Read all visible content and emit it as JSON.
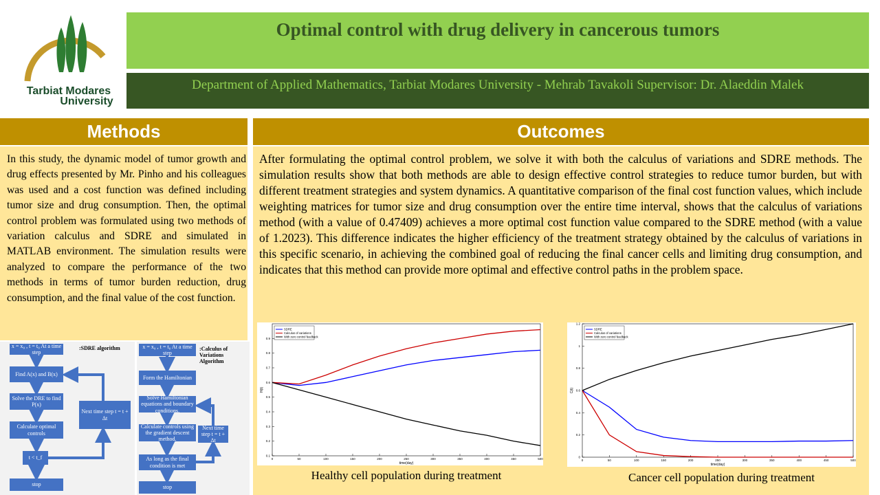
{
  "header": {
    "logo": [
      "Tarbiat Modares",
      "University"
    ],
    "title": "Optimal control with drug delivery in cancerous tumors",
    "subtitle": "Department of Applied Mathematics, Tarbiat Modares University - Mehrab Tavakoli Supervisor: Dr. Alaeddin Malek"
  },
  "methods": {
    "heading": "Methods",
    "text": "In this study, the dynamic model of tumor growth and drug effects presented by Mr. Pinho and his colleagues was used and a cost function was defined including tumor size and drug consumption. Then, the optimal control problem was formulated using two methods of variation calculus and SDRE and simulated in MATLAB environment. The simulation results were analyzed to compare the performance of the two methods in terms of tumor burden reduction, drug consumption, and the final value of the cost function."
  },
  "outcomes": {
    "heading": "Outcomes",
    "text": "After formulating the optimal control problem, we solve it with both the calculus of variations and SDRE methods. The simulation results show that both methods are able to design effective control strategies to reduce tumor burden, but with different treatment strategies and system dynamics. A quantitative comparison of the final cost function values, which include weighting matrices for tumor size and drug consumption over the entire time interval, shows that the calculus of variations method (with a value of 0.47409) achieves a more optimal cost function value compared to the SDRE method (with a value of 1.2023). This difference indicates the higher efficiency of the treatment strategy obtained by the calculus of variations in this specific scenario, in achieving the combined goal of reducing the final cancer cells and limiting drug consumption, and indicates that this method can provide more optimal and effective control paths in the problem space."
  },
  "flowcharts": [
    {
      "title": ":SDRE algorithm",
      "nodes": [
        "x = x₀ , t = t₀ At a time step",
        "Find A(x) and B(x)",
        "Solve the DRE to find P(x)",
        "Calculate optimal controls",
        "t < t_f",
        "stop",
        "Next time step t = t + Δt"
      ]
    },
    {
      "title": ":Calculus of Variations Algorithm",
      "nodes": [
        "x = x₀ , t = t₀ At a time step",
        "Form the Hamiltonian",
        "Solve Hamiltonian equations and boundary conditions.",
        "Calculate controls using the gradient descent method.",
        "As long as the final condition is met",
        "stop",
        "Next time step t = t + Δt"
      ]
    }
  ],
  "chart_data": [
    {
      "type": "line",
      "caption": "Healthy cell population during treatment",
      "xlabel": "time(day)",
      "ylabel": "H(t)",
      "x": [
        0,
        50,
        100,
        150,
        200,
        250,
        300,
        350,
        400,
        450,
        500
      ],
      "series": [
        {
          "name": "SDRE",
          "color": "#0000ff",
          "values": [
            0.6,
            0.58,
            0.6,
            0.64,
            0.68,
            0.72,
            0.75,
            0.77,
            0.79,
            0.81,
            0.82
          ]
        },
        {
          "name": "Calculus of variations",
          "color": "#cc0000",
          "values": [
            0.6,
            0.59,
            0.65,
            0.72,
            0.78,
            0.83,
            0.87,
            0.9,
            0.93,
            0.95,
            0.96
          ]
        },
        {
          "name": "With zero control feedback",
          "color": "#000000",
          "values": [
            0.6,
            0.55,
            0.5,
            0.45,
            0.4,
            0.35,
            0.31,
            0.27,
            0.24,
            0.2,
            0.17
          ]
        }
      ],
      "xlim": [
        0,
        500
      ],
      "xticks": [
        0,
        50,
        100,
        150,
        200,
        250,
        300,
        350,
        400,
        450,
        500
      ],
      "ylim": [
        0.1,
        1.0
      ],
      "yticks": [
        0.1,
        0.2,
        0.3,
        0.4,
        0.5,
        0.6,
        0.7,
        0.8,
        0.9
      ]
    },
    {
      "type": "line",
      "caption": "Cancer cell population during treatment",
      "xlabel": "time(day)",
      "ylabel": "C(t)",
      "x": [
        0,
        50,
        100,
        150,
        200,
        250,
        300,
        350,
        400,
        450,
        500
      ],
      "series": [
        {
          "name": "SDRE",
          "color": "#0000ff",
          "values": [
            0.6,
            0.45,
            0.25,
            0.18,
            0.15,
            0.14,
            0.14,
            0.14,
            0.145,
            0.145,
            0.15
          ]
        },
        {
          "name": "Calculus of variations",
          "color": "#cc0000",
          "values": [
            0.6,
            0.2,
            0.05,
            0.015,
            0.005,
            0,
            0,
            0,
            0,
            0,
            0
          ]
        },
        {
          "name": "With zero control feedback",
          "color": "#000000",
          "values": [
            0.6,
            0.7,
            0.78,
            0.85,
            0.91,
            0.96,
            1.01,
            1.06,
            1.1,
            1.15,
            1.2
          ]
        }
      ],
      "xlim": [
        0,
        500
      ],
      "xticks": [
        0,
        50,
        100,
        150,
        200,
        250,
        300,
        350,
        400,
        450,
        500
      ],
      "ylim": [
        0,
        1.2
      ],
      "yticks": [
        0,
        0.2,
        0.4,
        0.6,
        0.8,
        1,
        1.2
      ]
    }
  ]
}
